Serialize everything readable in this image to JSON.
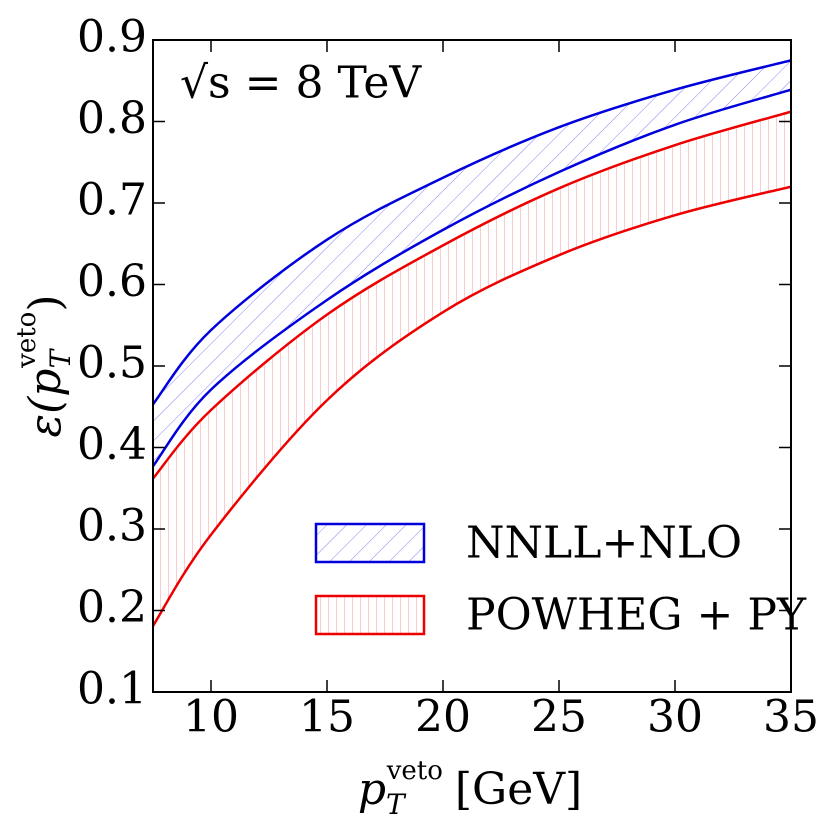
{
  "chart_data": {
    "type": "band",
    "annotation": "√s = 8 TeV",
    "xlabel": {
      "symbol": "p",
      "sub": "T",
      "sup": "veto",
      "unit": "[GeV]"
    },
    "ylabel": {
      "symbol": "ε(p",
      "sub": "T",
      "sup": "veto",
      "close": ")"
    },
    "x": [
      7.5,
      10,
      15,
      20,
      25,
      30,
      35
    ],
    "series": [
      {
        "name": "NNLL+NLO",
        "color": "#0000dd",
        "hatch": "diagonal",
        "upper": [
          0.453,
          0.544,
          0.655,
          0.731,
          0.793,
          0.839,
          0.875
        ],
        "lower": [
          0.377,
          0.471,
          0.581,
          0.667,
          0.738,
          0.796,
          0.839
        ]
      },
      {
        "name": "POWHEG + PY",
        "color": "#ee0000",
        "hatch": "vertical",
        "upper": [
          0.362,
          0.446,
          0.563,
          0.648,
          0.718,
          0.771,
          0.812
        ],
        "lower": [
          0.181,
          0.293,
          0.458,
          0.566,
          0.636,
          0.685,
          0.72
        ]
      }
    ],
    "xlim": [
      7.5,
      35
    ],
    "xticks": [
      10,
      15,
      20,
      25,
      30,
      35
    ],
    "ylim": [
      0.1,
      0.9
    ],
    "yticks": [
      0.1,
      0.2,
      0.3,
      0.4,
      0.5,
      0.6,
      0.7,
      0.8,
      0.9
    ],
    "legend": "lower right"
  }
}
